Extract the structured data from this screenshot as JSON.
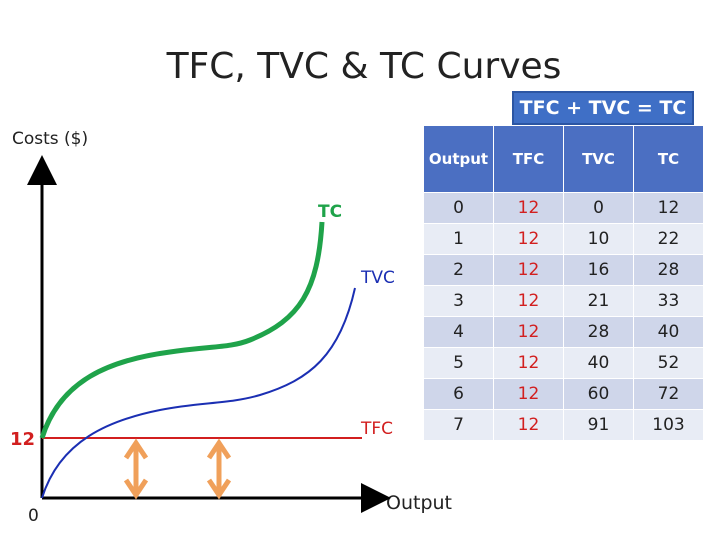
{
  "title": "TFC, TVC & TC Curves",
  "formula": "TFC + TVC = TC",
  "colors": {
    "tc": "#1fa34a",
    "tvc": "#1b2fb3",
    "tfc": "#d21f1f",
    "arrow": "#f0a05a",
    "header": "#4b6fc2"
  },
  "chart_data": [
    {
      "type": "line",
      "title": "TFC, TVC & TC Curves",
      "xlabel": "Output",
      "ylabel": "Costs ($)",
      "origin_label": "0",
      "y_tick_labels": [
        "12"
      ],
      "series": [
        {
          "name": "TC"
        },
        {
          "name": "TVC"
        },
        {
          "name": "TFC"
        }
      ]
    },
    {
      "type": "table",
      "columns": [
        "Output",
        "TFC",
        "TVC",
        "TC"
      ],
      "rows": [
        [
          "0",
          "12",
          "0",
          "12"
        ],
        [
          "1",
          "12",
          "10",
          "22"
        ],
        [
          "2",
          "12",
          "16",
          "28"
        ],
        [
          "3",
          "12",
          "21",
          "33"
        ],
        [
          "4",
          "12",
          "28",
          "40"
        ],
        [
          "5",
          "12",
          "40",
          "52"
        ],
        [
          "6",
          "12",
          "60",
          "72"
        ],
        [
          "7",
          "12",
          "91",
          "103"
        ]
      ]
    }
  ]
}
